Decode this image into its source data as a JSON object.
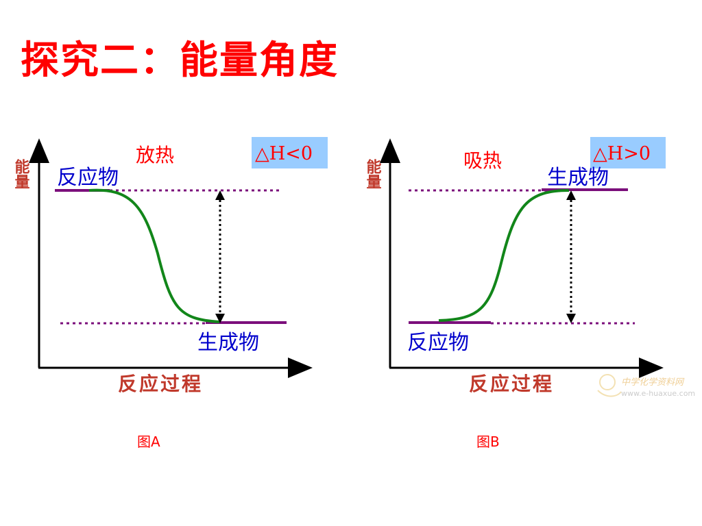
{
  "title": "探究二：能量角度",
  "colors": {
    "title": "#ff0000",
    "axis": "#000000",
    "energy_label": "#c0392b",
    "heat_label": "#ff0000",
    "substance_label": "#0000cc",
    "x_label": "#c0392b",
    "level_line": "#7b0f7b",
    "dotted_line": "#7b0f7b",
    "curve": "#12861a",
    "delta_box_bg": "#99ccff",
    "caption": "#ff0000"
  },
  "diagrams": [
    {
      "id": "A",
      "y_axis_label": "能量",
      "heat": "放热",
      "delta_h": "△H<0",
      "reactants": "反应物",
      "products": "生成物",
      "x_axis_label": "反应过程",
      "caption": "图A"
    },
    {
      "id": "B",
      "y_axis_label": "能量",
      "heat": "吸热",
      "delta_h": "△H>0",
      "reactants": "反应物",
      "products": "生成物",
      "x_axis_label": "反应过程",
      "caption": "图B"
    }
  ],
  "watermark": {
    "name": "中学化学资料网",
    "url": "www.e-huaxue.com"
  }
}
